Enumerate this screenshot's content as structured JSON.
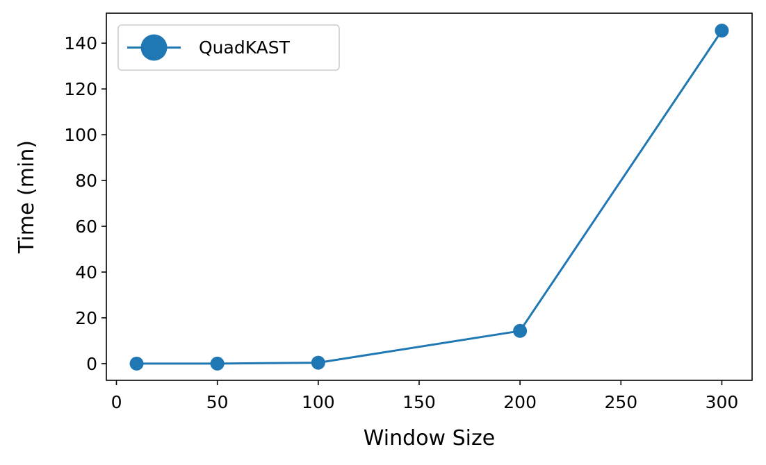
{
  "chart_data": {
    "type": "line",
    "title": "",
    "xlabel": "Window Size",
    "ylabel": "Time (min)",
    "xlim": [
      -5,
      315
    ],
    "ylim": [
      -7.3,
      153.1
    ],
    "x_ticks": [
      0,
      50,
      100,
      150,
      200,
      250,
      300
    ],
    "y_ticks": [
      0,
      20,
      40,
      60,
      80,
      100,
      120,
      140
    ],
    "grid": false,
    "legend_position": "top-left",
    "series": [
      {
        "name": "QuadKAST",
        "color": "#1f77b4",
        "marker": "circle",
        "x": [
          10,
          50,
          100,
          200,
          300
        ],
        "y": [
          0.0,
          0.0,
          0.4,
          14.3,
          145.5
        ]
      }
    ]
  }
}
